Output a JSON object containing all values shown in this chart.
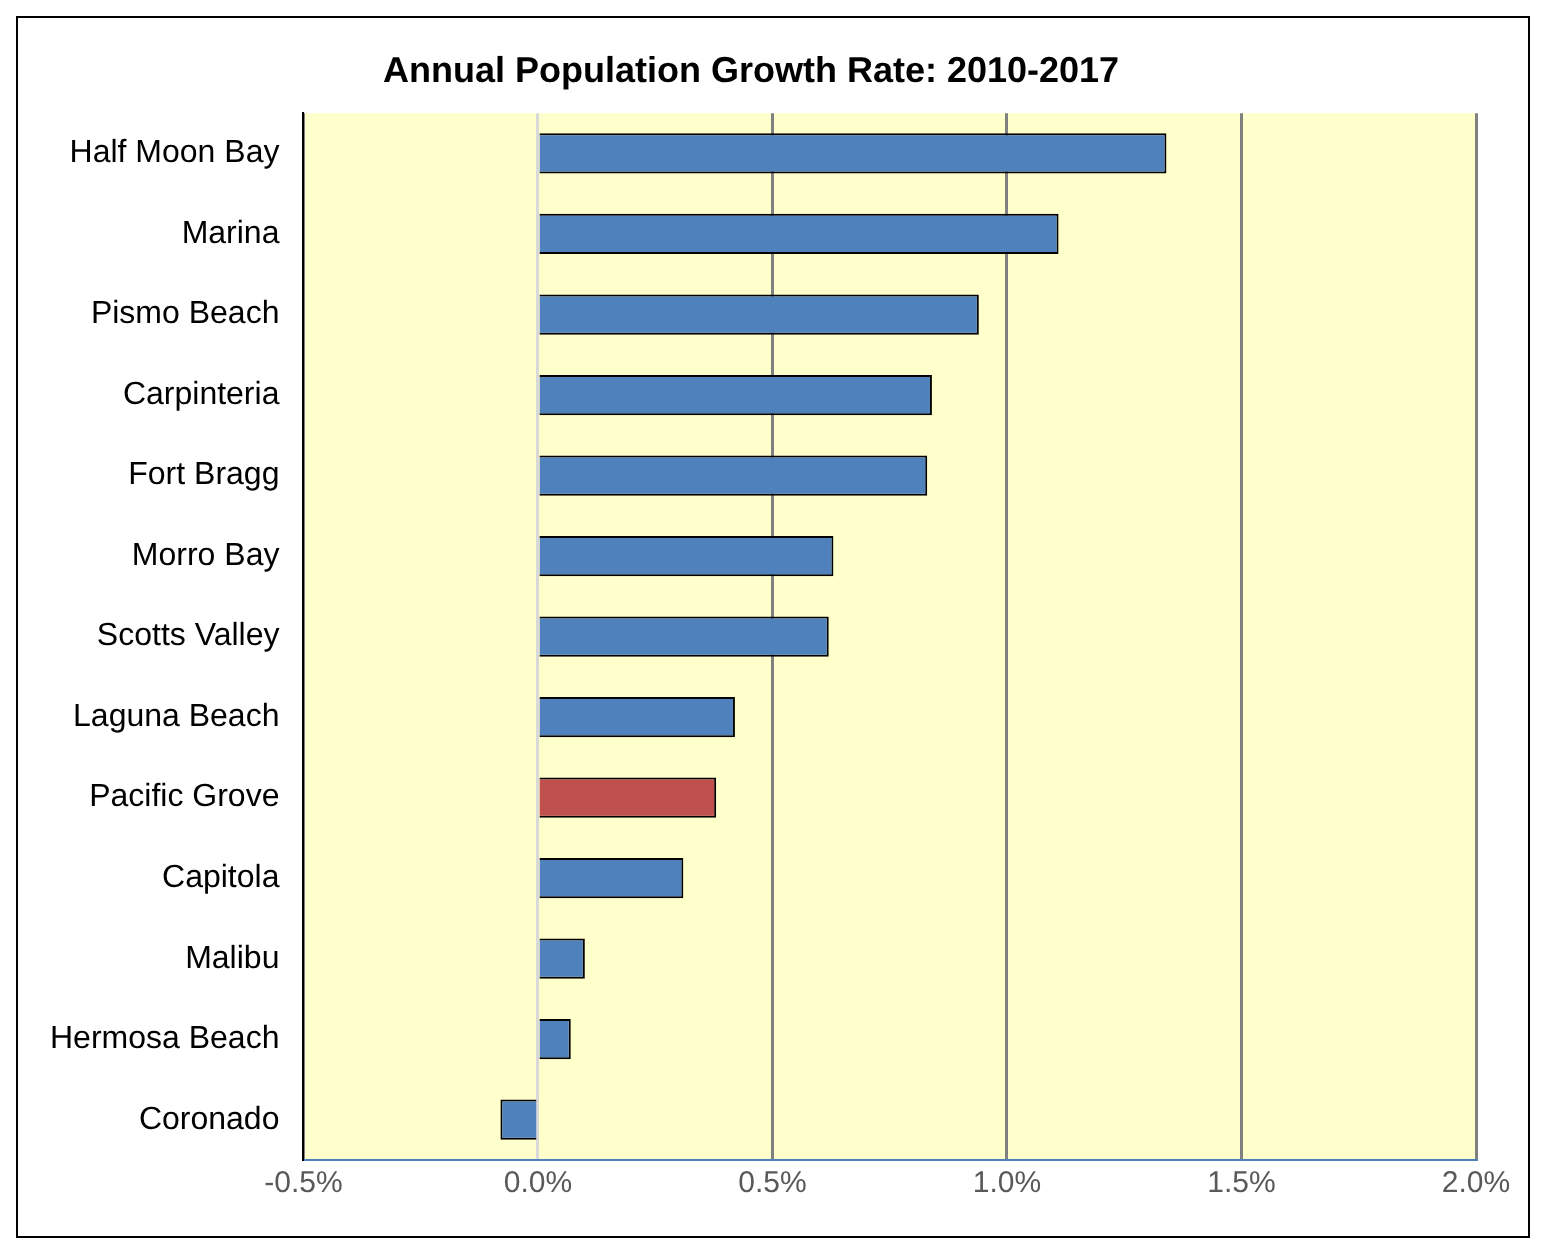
{
  "chart_data": {
    "type": "bar",
    "orientation": "horizontal",
    "title": "Annual Population Growth Rate: 2010-2017",
    "categories": [
      "Half Moon Bay",
      "Marina",
      "Pismo Beach",
      "Carpinteria",
      "Fort Bragg",
      "Morro Bay",
      "Scotts Valley",
      "Laguna Beach",
      "Pacific Grove",
      "Capitola",
      "Malibu",
      "Hermosa Beach",
      "Coronado"
    ],
    "values": [
      1.34,
      1.11,
      0.94,
      0.84,
      0.83,
      0.63,
      0.62,
      0.42,
      0.38,
      0.31,
      0.1,
      0.07,
      -0.08
    ],
    "colors": [
      "#4f81bd",
      "#4f81bd",
      "#4f81bd",
      "#4f81bd",
      "#4f81bd",
      "#4f81bd",
      "#4f81bd",
      "#4f81bd",
      "#c0504d",
      "#4f81bd",
      "#4f81bd",
      "#4f81bd",
      "#4f81bd"
    ],
    "xlim": [
      -0.5,
      2.0
    ],
    "xticks": [
      {
        "value": -0.5,
        "label": "-0.5%"
      },
      {
        "value": 0,
        "label": "0.0%"
      },
      {
        "value": 0.5,
        "label": "0.5%"
      },
      {
        "value": 1.0,
        "label": "1.0%"
      },
      {
        "value": 1.5,
        "label": "1.5%"
      },
      {
        "value": 2.0,
        "label": "2.0%"
      }
    ],
    "grid": "x",
    "legend": false
  }
}
